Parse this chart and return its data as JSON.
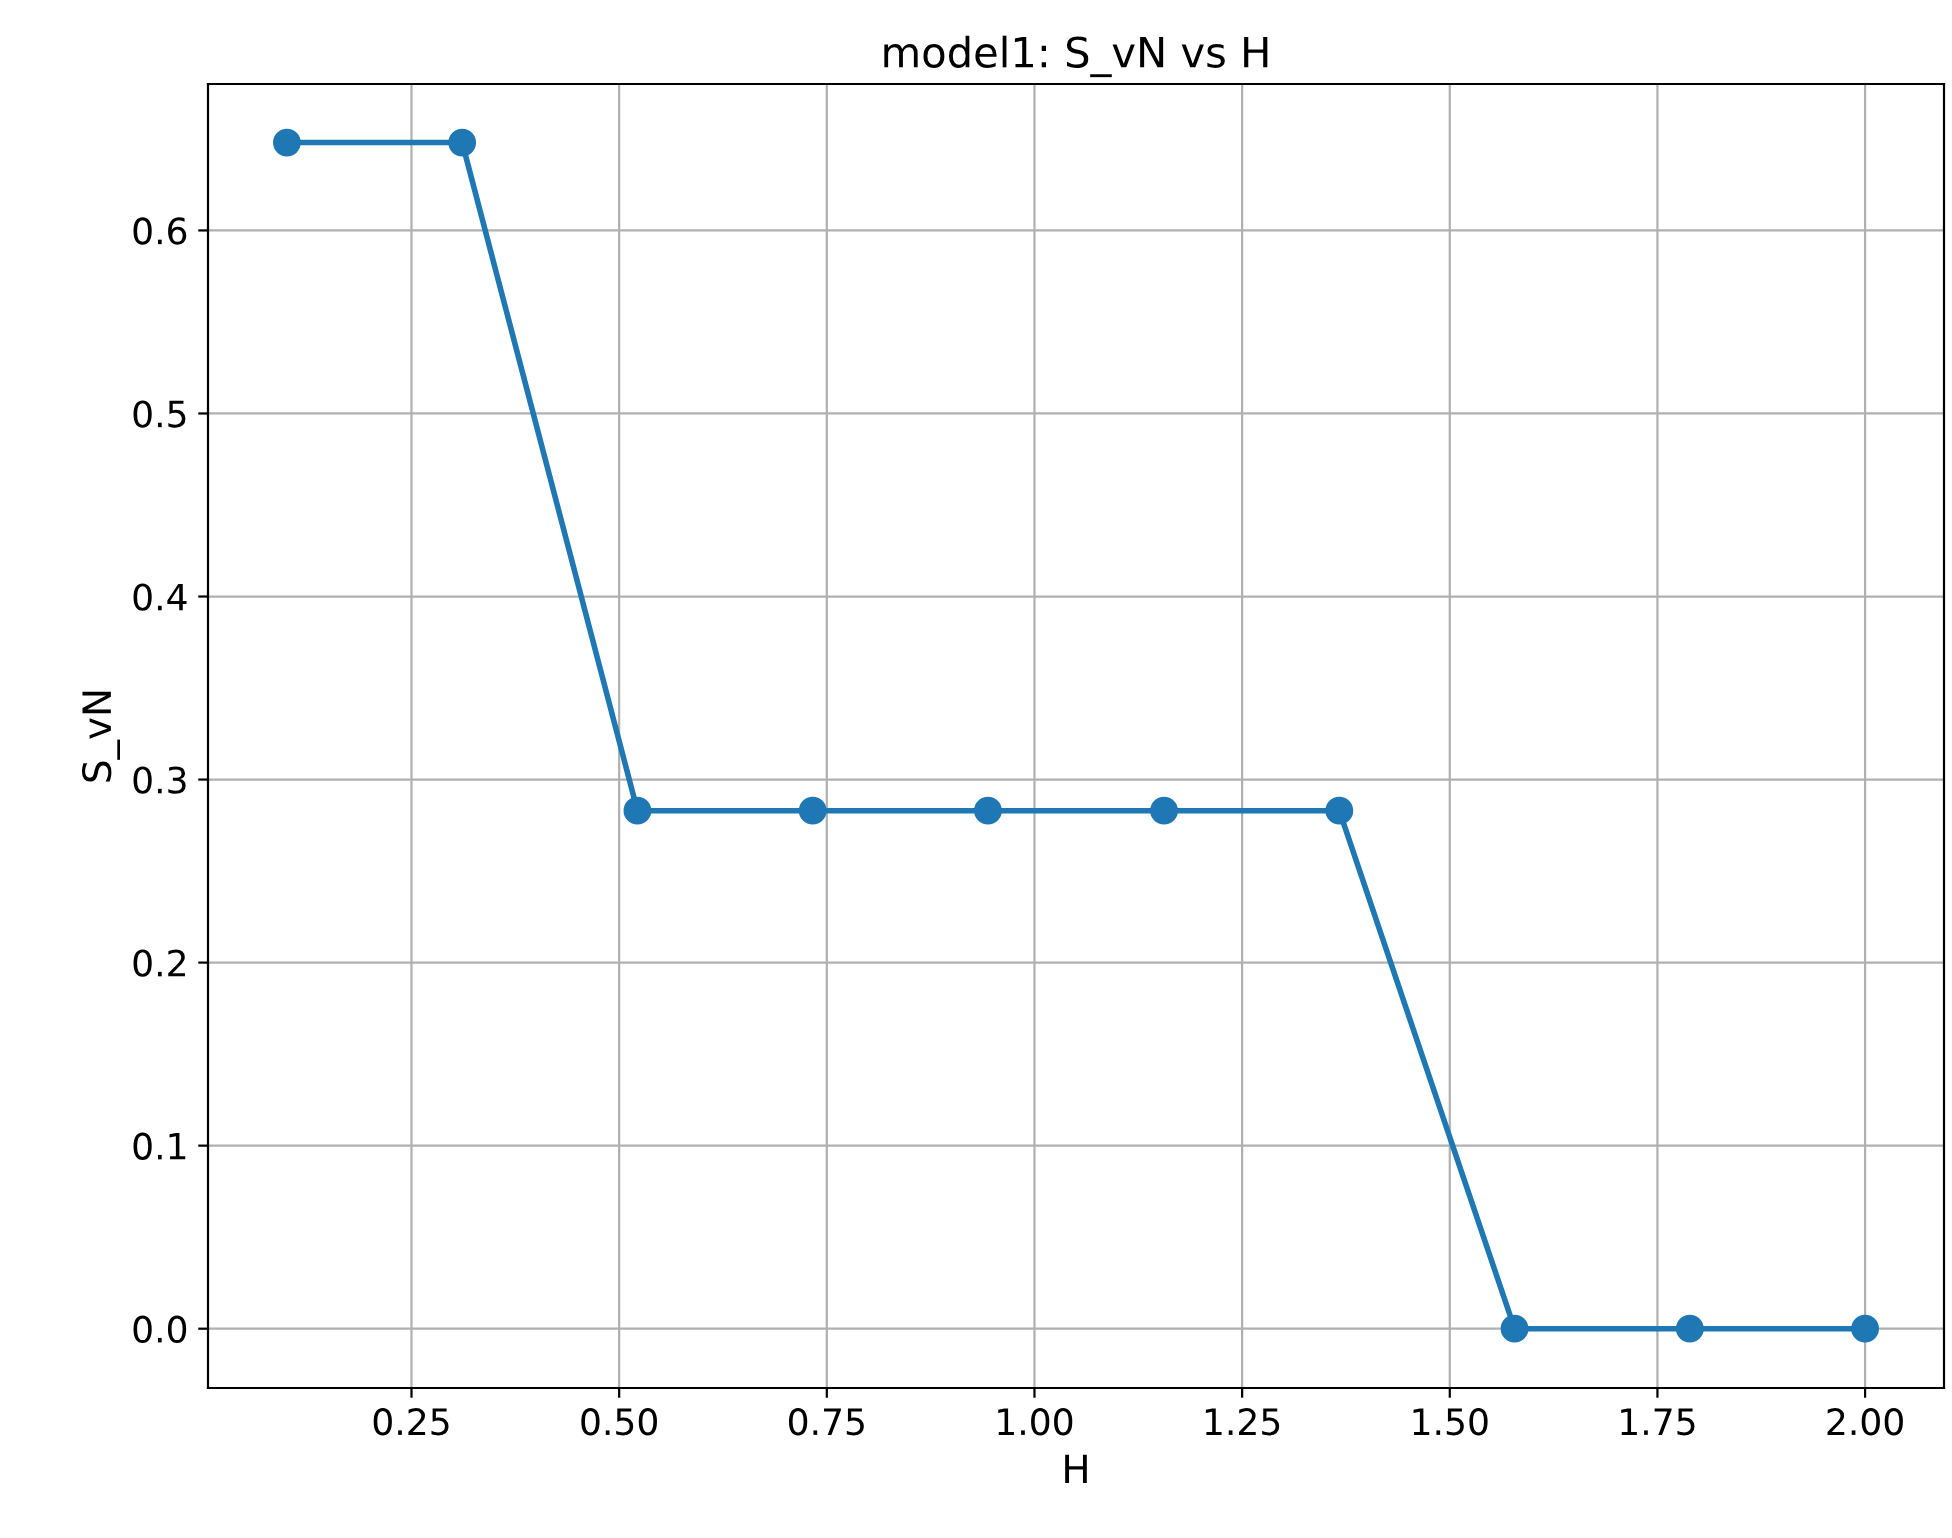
{
  "chart_data": {
    "type": "line",
    "title": "model1: S_vN vs H",
    "xlabel": "H",
    "ylabel": "S_vN",
    "x": [
      0.1,
      0.311,
      0.522,
      0.733,
      0.944,
      1.156,
      1.367,
      1.578,
      1.789,
      2.0
    ],
    "series": [
      {
        "color": "#1f77b4",
        "values": [
          0.648,
          0.648,
          0.283,
          0.283,
          0.283,
          0.283,
          0.283,
          0.0,
          0.0,
          0.0
        ]
      }
    ],
    "xlim": [
      0.005,
      2.095
    ],
    "ylim": [
      -0.0324,
      0.68
    ],
    "xticks": [
      {
        "value": 0.25,
        "label": "0.25"
      },
      {
        "value": 0.5,
        "label": "0.50"
      },
      {
        "value": 0.75,
        "label": "0.75"
      },
      {
        "value": 1.0,
        "label": "1.00"
      },
      {
        "value": 1.25,
        "label": "1.25"
      },
      {
        "value": 1.5,
        "label": "1.50"
      },
      {
        "value": 1.75,
        "label": "1.75"
      },
      {
        "value": 2.0,
        "label": "2.00"
      }
    ],
    "yticks": [
      {
        "value": 0,
        "label": "0.0"
      },
      {
        "value": 0.1,
        "label": "0.1"
      },
      {
        "value": 0.2,
        "label": "0.2"
      },
      {
        "value": 0.3,
        "label": "0.3"
      },
      {
        "value": 0.4,
        "label": "0.4"
      },
      {
        "value": 0.5,
        "label": "0.5"
      },
      {
        "value": 0.6,
        "label": "0.6"
      }
    ],
    "grid": true,
    "marker": "circle",
    "line_style": "solid"
  }
}
